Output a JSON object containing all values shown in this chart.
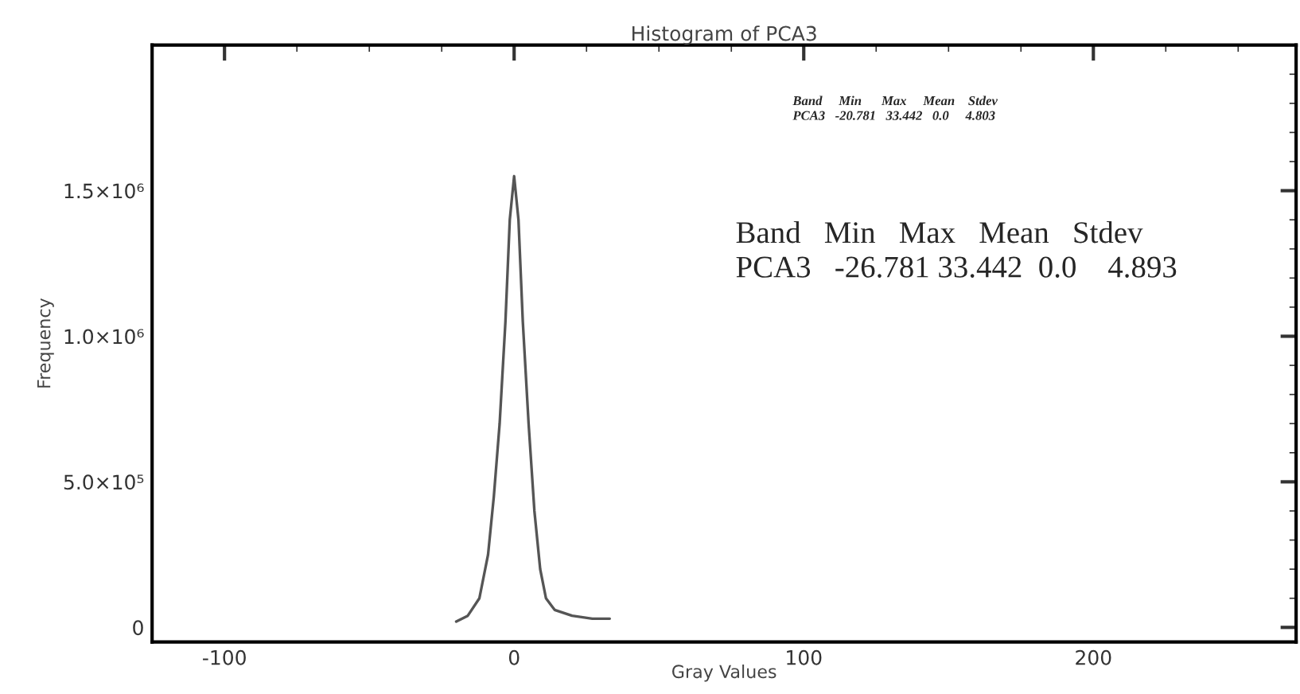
{
  "chart_data": {
    "type": "line",
    "title": "Histogram of PCA3",
    "xlabel": "Gray Values",
    "ylabel": "Frequency",
    "x": [
      -20,
      -16,
      -12,
      -9,
      -7,
      -5,
      -3,
      -1.5,
      0,
      1.5,
      3,
      5,
      7,
      9,
      11,
      14,
      20,
      27,
      33
    ],
    "series": [
      {
        "color": "#555555",
        "values": [
          20000,
          40000,
          100000,
          250000,
          450000,
          700000,
          1050000,
          1400000,
          1550000,
          1400000,
          1050000,
          700000,
          400000,
          200000,
          100000,
          60000,
          40000,
          30000,
          30000
        ]
      }
    ],
    "xlim": [
      -125,
      270
    ],
    "xticks": [
      -100,
      0,
      100,
      200
    ],
    "ylim": [
      -50000,
      2000000
    ],
    "yticks": [
      0,
      {
        "value": 500000,
        "label": "5.0×10⁵"
      },
      {
        "value": 1000000,
        "label": "1.0×10⁶"
      },
      {
        "value": 1500000,
        "label": "1.5×10⁶"
      }
    ],
    "grid": false,
    "legend": false,
    "marker": "none",
    "line_style": "solid",
    "annotations": [
      "Band     Min      Max     Mean    Stdev\nPCA3   -20.781   33.442   0.0     4.803",
      "Band   Min   Max   Mean   Stdev\nPCA3   -26.781 33.442  0.0    4.893"
    ]
  }
}
